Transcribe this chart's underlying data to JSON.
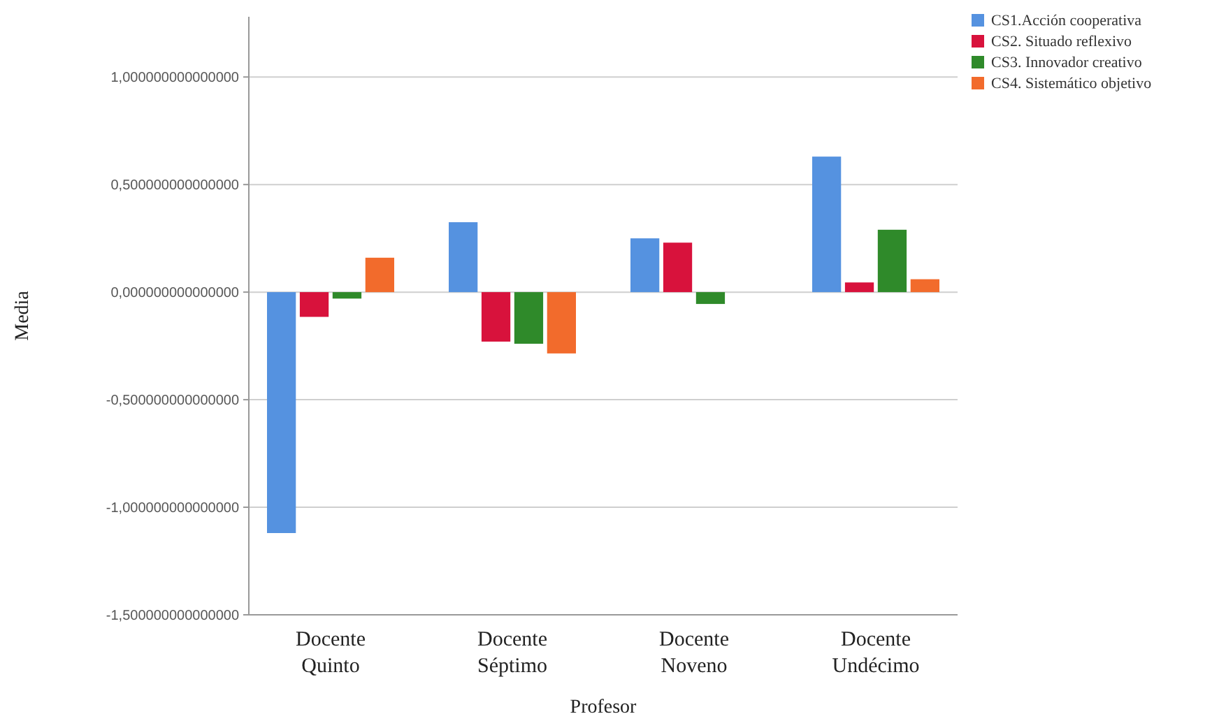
{
  "chart_data": {
    "type": "bar",
    "xlabel": "Profesor",
    "ylabel": "Media",
    "categories": [
      "Docente Quinto",
      "Docente Séptimo",
      "Docente Noveno",
      "Docente Undécimo"
    ],
    "series": [
      {
        "name": "CS1.Acción cooperativa",
        "color": "#5592e0",
        "values": [
          -1.12,
          0.325,
          0.25,
          0.63
        ]
      },
      {
        "name": "CS2. Situado reflexivo",
        "color": "#d8123c",
        "values": [
          -0.115,
          -0.23,
          0.23,
          0.045
        ]
      },
      {
        "name": "CS3. Innovador creativo",
        "color": "#2f8a2a",
        "values": [
          -0.03,
          -0.24,
          -0.055,
          0.29
        ]
      },
      {
        "name": "CS4. Sistemático objetivo",
        "color": "#f26b2c",
        "values": [
          0.16,
          -0.285,
          null,
          0.06
        ]
      }
    ],
    "ylim": [
      -1.5,
      1.28
    ],
    "yticks": [
      {
        "value": -1.5,
        "label": "-1,500000000000000"
      },
      {
        "value": -1,
        "label": "-1,000000000000000"
      },
      {
        "value": -0.5,
        "label": "-0,500000000000000"
      },
      {
        "value": 0,
        "label": "0,000000000000000"
      },
      {
        "value": 0.5,
        "label": "0,500000000000000"
      },
      {
        "value": 1,
        "label": "1,000000000000000"
      }
    ],
    "grid": "y",
    "legend": "top right"
  }
}
